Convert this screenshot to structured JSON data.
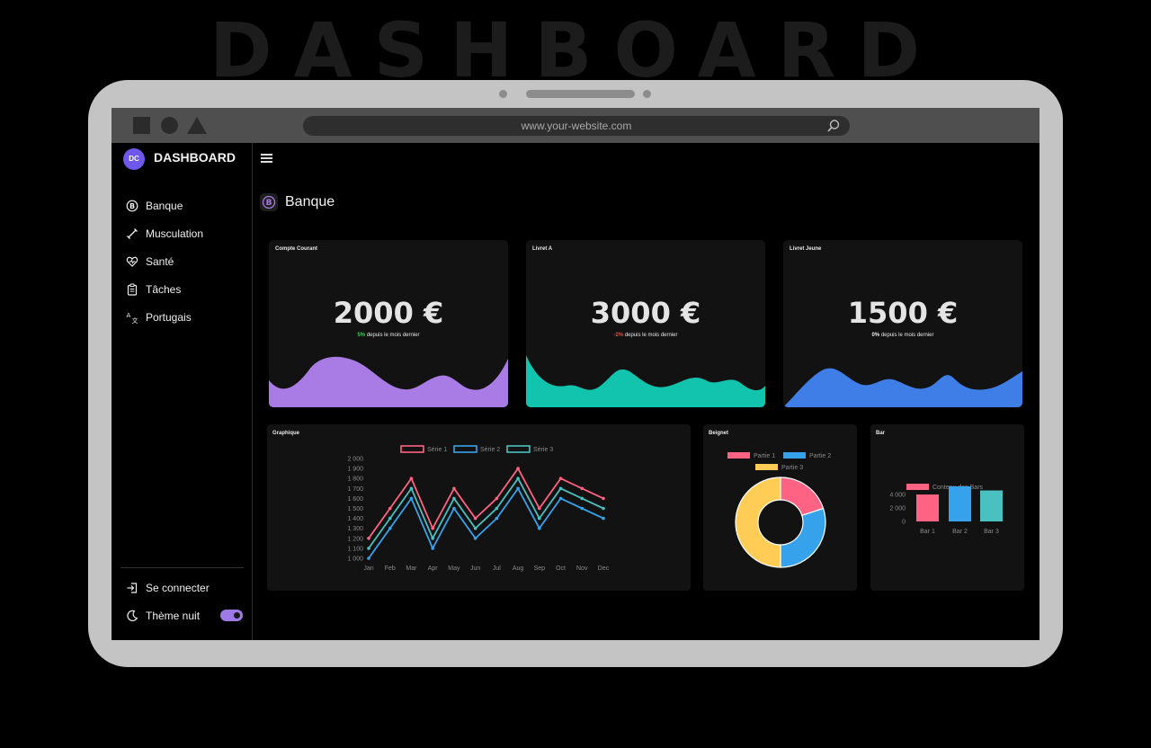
{
  "hero_title": "DASHBOARD",
  "browser": {
    "url": "www.your-website.com"
  },
  "brand": {
    "initials": "DC",
    "name": "DASHBOARD"
  },
  "nav": [
    {
      "label": "Banque",
      "icon": "bitcoin-icon"
    },
    {
      "label": "Musculation",
      "icon": "dumbbell-icon"
    },
    {
      "label": "Santé",
      "icon": "heart-pulse-icon"
    },
    {
      "label": "Tâches",
      "icon": "clipboard-icon"
    },
    {
      "label": "Portugais",
      "icon": "translate-icon"
    }
  ],
  "footer_nav": {
    "login": "Se connecter",
    "theme": "Thème nuit",
    "theme_on": true
  },
  "page": {
    "title": "Banque"
  },
  "colors": {
    "accent": "#9d7ae6",
    "card_bg": "#121212",
    "positive": "#3ecf5a",
    "negative": "#e74a3b"
  },
  "cards": [
    {
      "label": "Compte Courant",
      "value": "2000 €",
      "change": "5%",
      "change_text": "depuis le mois dernier",
      "change_color": "#3ecf5a",
      "wave_color": "#a97be4"
    },
    {
      "label": "Livret A",
      "value": "3000 €",
      "change": "-2%",
      "change_text": "depuis le mois dernier",
      "change_color": "#e74a3b",
      "wave_color": "#12c4ae"
    },
    {
      "label": "Livret Jeune",
      "value": "1500 €",
      "change": "0%",
      "change_text": "depuis le mois dernier",
      "change_color": "#e8e8e8",
      "wave_color": "#3f7ee6"
    }
  ],
  "charts_titles": {
    "line": "Graphique",
    "donut": "Beignet",
    "bar": "Bar"
  },
  "chart_data": [
    {
      "type": "line",
      "title": "Graphique",
      "categories": [
        "Jan",
        "Feb",
        "Mar",
        "Apr",
        "May",
        "Jun",
        "Jul",
        "Aug",
        "Sep",
        "Oct",
        "Nov",
        "Dec"
      ],
      "ylim": [
        1000,
        2000
      ],
      "yticks": [
        "2 000",
        "1 900",
        "1 800",
        "1 700",
        "1 600",
        "1 500",
        "1 400",
        "1 300",
        "1 200",
        "1 100",
        "1 000"
      ],
      "legend": "top-center",
      "series": [
        {
          "name": "Série 1",
          "color": "#ff6384",
          "values": [
            1200,
            1500,
            1800,
            1300,
            1700,
            1400,
            1600,
            1900,
            1500,
            1800,
            1700,
            1600
          ]
        },
        {
          "name": "Série 2",
          "color": "#36a2eb",
          "values": [
            1000,
            1300,
            1600,
            1100,
            1500,
            1200,
            1400,
            1700,
            1300,
            1600,
            1500,
            1400
          ]
        },
        {
          "name": "Série 3",
          "color": "#4bc0c0",
          "values": [
            1100,
            1400,
            1700,
            1200,
            1600,
            1300,
            1500,
            1800,
            1400,
            1700,
            1600,
            1500
          ]
        }
      ]
    },
    {
      "type": "pie",
      "title": "Beignet",
      "legend": "top",
      "categories": [
        "Partie 1",
        "Partie 2",
        "Partie 3"
      ],
      "values": [
        20,
        30,
        50
      ],
      "colors": [
        "#ff6384",
        "#36a2eb",
        "#ffcd56"
      ]
    },
    {
      "type": "bar",
      "title": "Bar",
      "series_name": "Contenu des Bars",
      "legend": "top",
      "categories": [
        "Bar 1",
        "Bar 2",
        "Bar 3"
      ],
      "values": [
        4000,
        5200,
        4600
      ],
      "colors": [
        "#ff6384",
        "#36a2eb",
        "#4bc0c0"
      ],
      "ylim": [
        0,
        6000
      ],
      "yticks": [
        "4 000",
        "2 000",
        "0"
      ]
    }
  ]
}
